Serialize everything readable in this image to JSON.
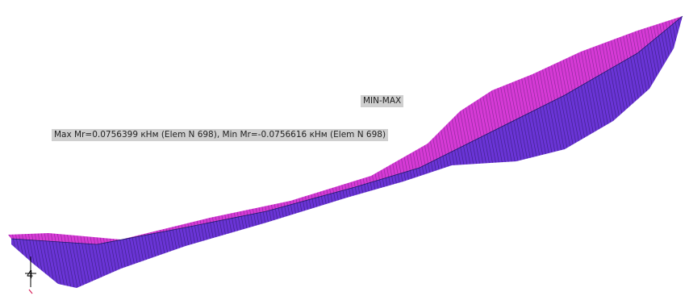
{
  "plot": {
    "mode_label": "MIN-MAX",
    "extrema_label": "Max Mr=0.0756399 кНм (Elem N 698), Min Mr=-0.0756616 кНм (Elem N 698)",
    "support_marker": "4"
  },
  "colors": {
    "background": "#ffffff",
    "max_envelope": "#d63ad6",
    "min_envelope": "#6a34d6",
    "hatch_dark": "#101030",
    "beam_axis": "#1a1a6a",
    "label_background": "#cfcfcf",
    "label_text": "#222222",
    "support_line": "#000000",
    "support_accent": "#d8205a"
  }
}
